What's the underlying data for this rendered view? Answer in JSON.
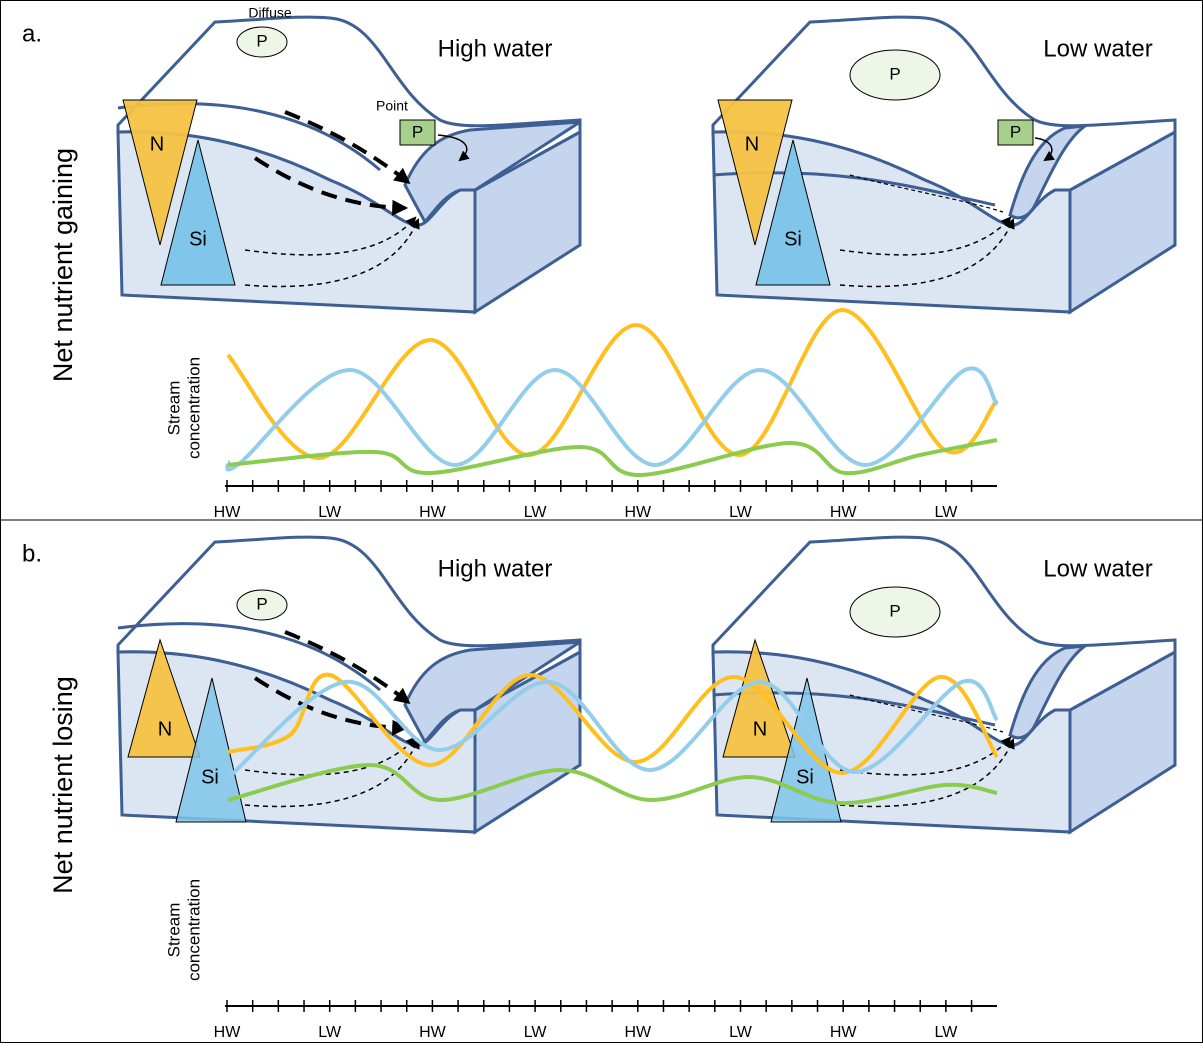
{
  "panels": [
    {
      "label": "a.",
      "row_label": "Net nutrient gaining",
      "high": {
        "title": "High water",
        "diffuse": "Diffuse",
        "diffuse_p": "P",
        "point": "Point",
        "point_p": "P",
        "n": "N",
        "si": "Si"
      },
      "low": {
        "title": "Low water",
        "diffuse_p": "P",
        "point_p": "P",
        "n": "N",
        "si": "Si"
      },
      "plot": {
        "y_label": [
          "Stream",
          "concentration"
        ],
        "x_ticks": [
          "HW",
          "LW",
          "HW",
          "LW",
          "HW",
          "LW",
          "HW",
          "LW"
        ]
      }
    },
    {
      "label": "b.",
      "row_label": "Net nutrient losing",
      "high": {
        "title": "High water",
        "diffuse_p": "P",
        "n": "N",
        "si": "Si"
      },
      "low": {
        "title": "Low water",
        "diffuse_p": "P",
        "n": "N",
        "si": "Si"
      },
      "plot": {
        "y_label": [
          "Stream",
          "concentration"
        ],
        "x_ticks": [
          "HW",
          "LW",
          "HW",
          "LW",
          "HW",
          "LW",
          "HW",
          "LW"
        ]
      }
    }
  ]
}
